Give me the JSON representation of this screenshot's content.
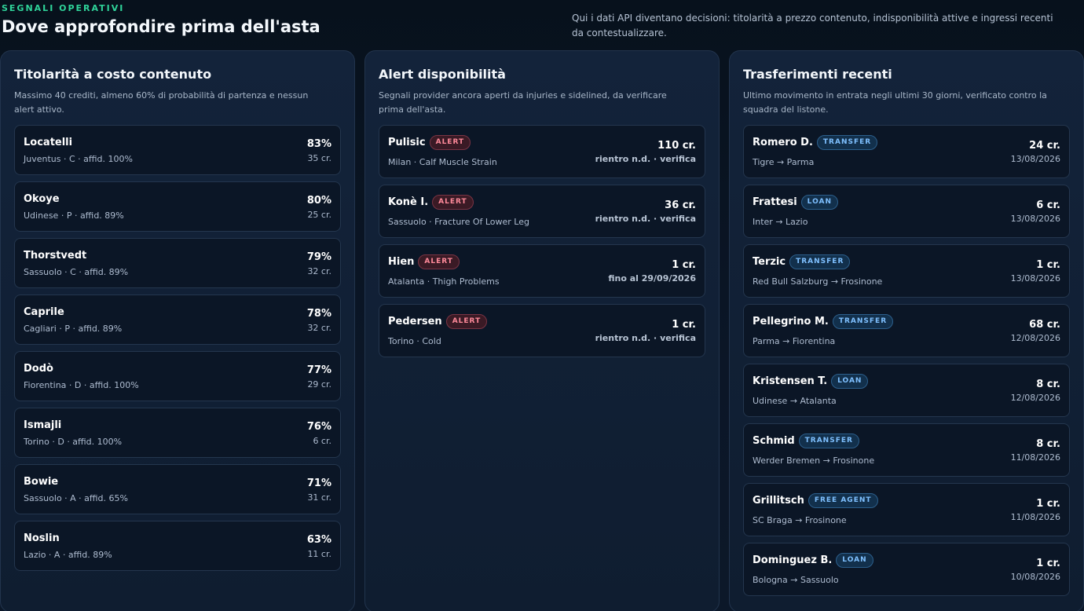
{
  "header": {
    "eyebrow": "SEGNALI OPERATIVI",
    "title": "Dove approfondire prima dell'asta",
    "intro": "Qui i dati API diventano decisioni: titolarità a prezzo contenuto, indisponibilità attive e ingressi recenti da contestualizzare."
  },
  "ownership": {
    "title": "Titolarità a costo contenuto",
    "description": "Massimo 40 crediti, almeno 60% di probabilità di partenza e nessun alert attivo.",
    "items": [
      {
        "name": "Locatelli",
        "meta": "Juventus · C · affid. 100%",
        "pct": "83%",
        "cost": "35 cr."
      },
      {
        "name": "Okoye",
        "meta": "Udinese · P · affid. 89%",
        "pct": "80%",
        "cost": "25 cr."
      },
      {
        "name": "Thorstvedt",
        "meta": "Sassuolo · C · affid. 89%",
        "pct": "79%",
        "cost": "32 cr."
      },
      {
        "name": "Caprile",
        "meta": "Cagliari · P · affid. 89%",
        "pct": "78%",
        "cost": "32 cr."
      },
      {
        "name": "Dodò",
        "meta": "Fiorentina · D · affid. 100%",
        "pct": "77%",
        "cost": "29 cr."
      },
      {
        "name": "Ismajli",
        "meta": "Torino · D · affid. 100%",
        "pct": "76%",
        "cost": "6 cr."
      },
      {
        "name": "Bowie",
        "meta": "Sassuolo · A · affid. 65%",
        "pct": "71%",
        "cost": "31 cr."
      },
      {
        "name": "Noslin",
        "meta": "Lazio · A · affid. 89%",
        "pct": "63%",
        "cost": "11 cr."
      }
    ]
  },
  "alerts": {
    "title": "Alert disponibilità",
    "description": "Segnali provider ancora aperti da injuries e sidelined, da verificare prima dell'asta.",
    "items": [
      {
        "name": "Pulisic",
        "badge": "ALERT",
        "meta": "Milan · Calf Muscle Strain",
        "cost": "110 cr.",
        "status": "rientro n.d. · verifica"
      },
      {
        "name": "Konè I.",
        "badge": "ALERT",
        "meta": "Sassuolo · Fracture Of Lower Leg",
        "cost": "36 cr.",
        "status": "rientro n.d. · verifica"
      },
      {
        "name": "Hien",
        "badge": "ALERT",
        "meta": "Atalanta · Thigh Problems",
        "cost": "1 cr.",
        "status": "fino al 29/09/2026"
      },
      {
        "name": "Pedersen",
        "badge": "ALERT",
        "meta": "Torino · Cold",
        "cost": "1 cr.",
        "status": "rientro n.d. · verifica"
      }
    ]
  },
  "transfers": {
    "title": "Trasferimenti recenti",
    "description": "Ultimo movimento in entrata negli ultimi 30 giorni, verificato contro la squadra del listone.",
    "items": [
      {
        "name": "Romero D.",
        "badge": "TRANSFER",
        "meta": "Tigre → Parma",
        "cost": "24 cr.",
        "date": "13/08/2026"
      },
      {
        "name": "Frattesi",
        "badge": "LOAN",
        "meta": "Inter → Lazio",
        "cost": "6 cr.",
        "date": "13/08/2026"
      },
      {
        "name": "Terzic",
        "badge": "TRANSFER",
        "meta": "Red Bull Salzburg → Frosinone",
        "cost": "1 cr.",
        "date": "13/08/2026"
      },
      {
        "name": "Pellegrino M.",
        "badge": "TRANSFER",
        "meta": "Parma → Fiorentina",
        "cost": "68 cr.",
        "date": "12/08/2026"
      },
      {
        "name": "Kristensen T.",
        "badge": "LOAN",
        "meta": "Udinese → Atalanta",
        "cost": "8 cr.",
        "date": "12/08/2026"
      },
      {
        "name": "Schmid",
        "badge": "TRANSFER",
        "meta": "Werder Bremen → Frosinone",
        "cost": "8 cr.",
        "date": "11/08/2026"
      },
      {
        "name": "Grillitsch",
        "badge": "FREE AGENT",
        "meta": "SC Braga → Frosinone",
        "cost": "1 cr.",
        "date": "11/08/2026"
      },
      {
        "name": "Dominguez B.",
        "badge": "LOAN",
        "meta": "Bologna → Sassuolo",
        "cost": "1 cr.",
        "date": "10/08/2026"
      }
    ]
  },
  "colors": {
    "accent": "#2fd49a",
    "alert": "#ff8a9a",
    "transfer": "#7fc0ff"
  }
}
